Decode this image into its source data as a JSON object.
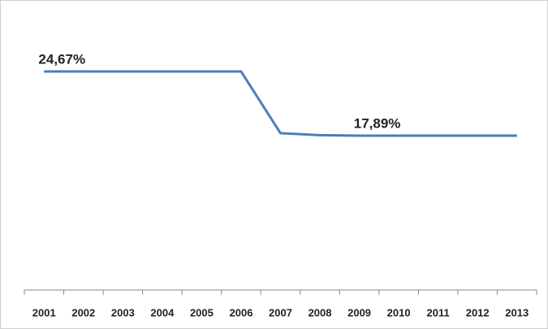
{
  "chart_data": {
    "type": "line",
    "categories": [
      "2001",
      "2002",
      "2003",
      "2004",
      "2005",
      "2006",
      "2007",
      "2008",
      "2009",
      "2010",
      "2011",
      "2012",
      "2013"
    ],
    "values": [
      24.67,
      24.67,
      24.67,
      24.67,
      24.67,
      24.67,
      18.15,
      17.94,
      17.89,
      17.89,
      17.89,
      17.89,
      17.89
    ],
    "value_labels": [
      "24,67%",
      null,
      null,
      null,
      null,
      null,
      null,
      null,
      "17,89%",
      null,
      null,
      null,
      null
    ],
    "color": "#4a7ebb"
  }
}
